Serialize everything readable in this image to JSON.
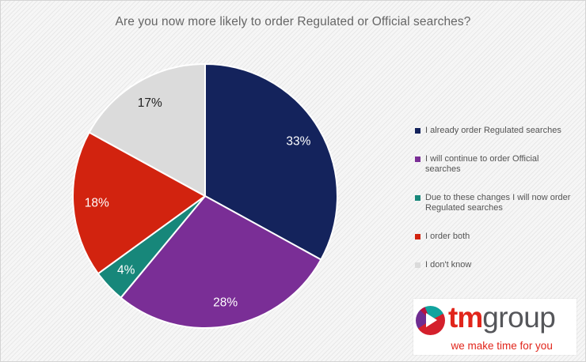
{
  "chart_data": {
    "type": "pie",
    "title": "Are you now more likely to order Regulated or Official searches?",
    "labels": [
      "I already order Regulated searches",
      "I will continue to order Official searches",
      "Due to these changes I will now order Regulated searches",
      "I order both",
      "I don't know"
    ],
    "values": [
      33,
      28,
      4,
      18,
      17
    ],
    "value_labels": [
      "33%",
      "28%",
      "4%",
      "18%",
      "17%"
    ],
    "colors": [
      "#14235C",
      "#7A2E96",
      "#17877A",
      "#D2230F",
      "#DBDBDB"
    ],
    "label_text_colors": [
      "#FFFFFF",
      "#FFFFFF",
      "#FFFFFF",
      "#FFFFFF",
      "#222222"
    ],
    "start_angle_deg": 0,
    "direction": "clockwise",
    "legend_position": "right",
    "grid": false,
    "background": "diagonal-stripes"
  },
  "logo": {
    "brand_bold": "tm",
    "brand_light": "group",
    "tagline": "we make time for you",
    "brand_red": "#E1251B",
    "brand_gray": "#55565A",
    "icon_teal": "#11A39E",
    "icon_red": "#D4202C",
    "icon_purple": "#6F2C91",
    "icon_crimson": "#B8123F"
  }
}
